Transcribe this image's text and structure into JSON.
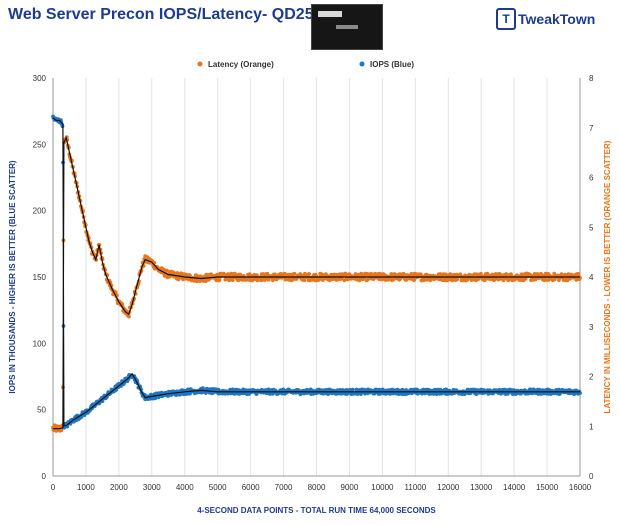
{
  "chart_data": {
    "type": "scatter",
    "title": "Web Server Precon IOPS/Latency- QD256",
    "xlabel": "4-SECOND DATA POINTS - TOTAL RUN TIME 64,000 SECONDS",
    "ylabel_left": "IOPS IN THOUSANDS - HIGHER IS BETTER (BLUE SCATTER)",
    "ylabel_right": "LATENCY IN MILLISECONDS - LOWER IS BETTER (ORANGE SCATTER)",
    "xlim": [
      0,
      16000
    ],
    "ylim_left": [
      0,
      300
    ],
    "ylim_right": [
      0,
      8
    ],
    "x_ticks": [
      "0",
      "1000",
      "2000",
      "3000",
      "4000",
      "5000",
      "6000",
      "7000",
      "8000",
      "9000",
      "10000",
      "11000",
      "12000",
      "13000",
      "14000",
      "15000",
      "16000"
    ],
    "y_ticks_left": [
      "0",
      "50",
      "100",
      "150",
      "200",
      "250",
      "300"
    ],
    "y_ticks_right": [
      "0",
      "1",
      "2",
      "3",
      "4",
      "5",
      "6",
      "7",
      "8"
    ],
    "grid": "vertical",
    "legend_position": "top",
    "series": [
      {
        "name": "Latency (Orange)",
        "axis": "right",
        "color": "#e8761c",
        "points": [
          [
            0,
            0.95
          ],
          [
            100,
            0.95
          ],
          [
            200,
            0.95
          ],
          [
            300,
            0.97
          ],
          [
            330,
            6.7
          ],
          [
            400,
            6.8
          ],
          [
            500,
            6.5
          ],
          [
            600,
            6.2
          ],
          [
            700,
            5.9
          ],
          [
            800,
            5.6
          ],
          [
            900,
            5.3
          ],
          [
            1000,
            5.0
          ],
          [
            1100,
            4.7
          ],
          [
            1200,
            4.5
          ],
          [
            1300,
            4.35
          ],
          [
            1400,
            4.65
          ],
          [
            1500,
            4.3
          ],
          [
            1600,
            4.05
          ],
          [
            1800,
            3.75
          ],
          [
            2000,
            3.5
          ],
          [
            2200,
            3.3
          ],
          [
            2300,
            3.25
          ],
          [
            2400,
            3.45
          ],
          [
            2500,
            3.7
          ],
          [
            2600,
            3.95
          ],
          [
            2700,
            4.2
          ],
          [
            2800,
            4.35
          ],
          [
            3000,
            4.3
          ],
          [
            3200,
            4.15
          ],
          [
            3500,
            4.05
          ],
          [
            4000,
            4.0
          ],
          [
            4500,
            3.97
          ],
          [
            5000,
            4.0
          ],
          [
            6000,
            4.0
          ],
          [
            8000,
            4.0
          ],
          [
            10000,
            4.0
          ],
          [
            12000,
            4.0
          ],
          [
            14000,
            4.0
          ],
          [
            16000,
            4.0
          ]
        ]
      },
      {
        "name": "IOPS (Blue)",
        "axis": "left",
        "color": "#1f77c4",
        "points": [
          [
            0,
            270
          ],
          [
            100,
            268
          ],
          [
            200,
            268
          ],
          [
            300,
            265
          ],
          [
            330,
            38
          ],
          [
            400,
            38
          ],
          [
            600,
            42
          ],
          [
            800,
            45
          ],
          [
            1000,
            48
          ],
          [
            1200,
            52
          ],
          [
            1400,
            56
          ],
          [
            1600,
            60
          ],
          [
            1800,
            64
          ],
          [
            2000,
            68
          ],
          [
            2200,
            72
          ],
          [
            2300,
            74
          ],
          [
            2400,
            77
          ],
          [
            2500,
            73
          ],
          [
            2600,
            68
          ],
          [
            2700,
            63
          ],
          [
            2800,
            59
          ],
          [
            3000,
            60
          ],
          [
            3500,
            62
          ],
          [
            4000,
            63.5
          ],
          [
            4500,
            64.5
          ],
          [
            5000,
            63.5
          ],
          [
            6000,
            63.5
          ],
          [
            8000,
            63.5
          ],
          [
            10000,
            63.5
          ],
          [
            12000,
            63.5
          ],
          [
            14000,
            63.5
          ],
          [
            16000,
            63.5
          ]
        ]
      }
    ]
  }
}
